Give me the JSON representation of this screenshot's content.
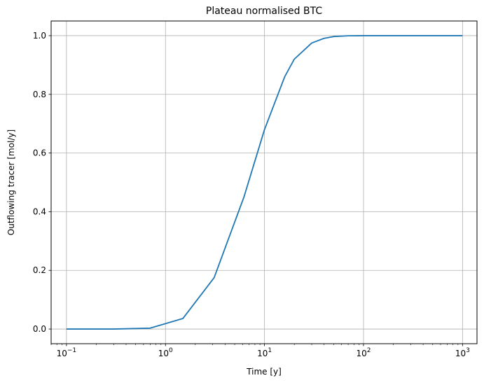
{
  "chart_data": {
    "type": "line",
    "title": "Plateau normalised BTC",
    "xlabel": "Time [y]",
    "ylabel": "Outflowing tracer [mol/y]",
    "xscale": "log",
    "xlim": [
      0.07,
      1400
    ],
    "ylim": [
      -0.05,
      1.05
    ],
    "grid": true,
    "legend": "none",
    "x_ticks": [
      {
        "value": 0.1,
        "base": "10",
        "exp": "−1"
      },
      {
        "value": 1,
        "base": "10",
        "exp": "0"
      },
      {
        "value": 10,
        "base": "10",
        "exp": "1"
      },
      {
        "value": 100,
        "base": "10",
        "exp": "2"
      },
      {
        "value": 1000,
        "base": "10",
        "exp": "3"
      }
    ],
    "y_ticks": [
      {
        "value": 0.0,
        "label": "0.0"
      },
      {
        "value": 0.2,
        "label": "0.2"
      },
      {
        "value": 0.4,
        "label": "0.4"
      },
      {
        "value": 0.6,
        "label": "0.6"
      },
      {
        "value": 0.8,
        "label": "0.8"
      },
      {
        "value": 1.0,
        "label": "1.0"
      }
    ],
    "series": [
      {
        "color": "#1f77b4",
        "x": [
          0.1,
          0.3,
          0.7,
          1.5,
          3.1,
          6.2,
          10,
          16,
          20,
          30,
          40,
          50,
          70,
          100,
          200,
          500,
          1000
        ],
        "y": [
          0.0,
          0.0,
          0.003,
          0.036,
          0.175,
          0.45,
          0.68,
          0.86,
          0.92,
          0.975,
          0.991,
          0.997,
          0.9995,
          1.0,
          1.0,
          1.0,
          1.0
        ]
      }
    ]
  }
}
